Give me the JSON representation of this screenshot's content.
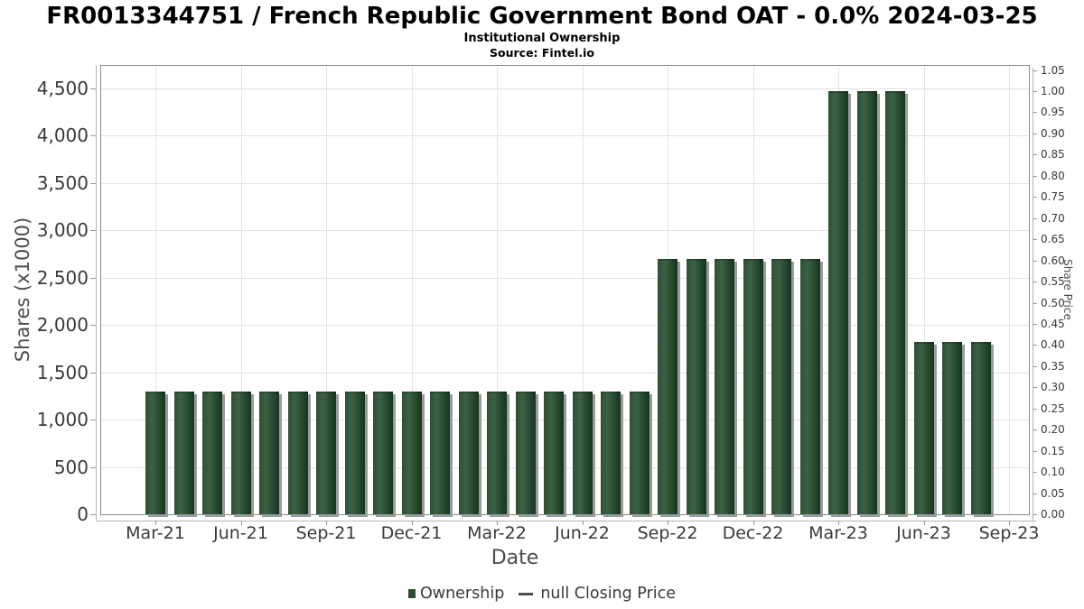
{
  "chart": {
    "title": "FR0013344751 / French Republic Government Bond OAT - 0.0% 2024-03-25",
    "subtitle": "Institutional Ownership",
    "source": "Source: Fintel.io",
    "legend": {
      "ownership_label": "Ownership",
      "closing_price_label": "null Closing Price"
    }
  },
  "chart_data": {
    "type": "bar",
    "title": "FR0013344751 / French Republic Government Bond OAT - 0.0% 2024-03-25",
    "subtitle": "Institutional Ownership",
    "source": "Source: Fintel.io",
    "categories": [
      "Mar-21",
      "Apr-21",
      "May-21",
      "Jun-21",
      "Jul-21",
      "Aug-21",
      "Sep-21",
      "Oct-21",
      "Nov-21",
      "Dec-21",
      "Jan-22",
      "Feb-22",
      "Mar-22",
      "Apr-22",
      "May-22",
      "Jun-22",
      "Jul-22",
      "Aug-22",
      "Sep-22",
      "Oct-22",
      "Nov-22",
      "Dec-22",
      "Jan-23",
      "Feb-23",
      "Mar-23",
      "Apr-23",
      "May-23",
      "Jun-23",
      "Jul-23",
      "Aug-23"
    ],
    "series": [
      {
        "name": "Ownership",
        "values": [
          1300,
          1300,
          1300,
          1300,
          1300,
          1300,
          1300,
          1300,
          1300,
          1300,
          1300,
          1300,
          1300,
          1300,
          1300,
          1300,
          1300,
          1300,
          2700,
          2700,
          2700,
          2700,
          2700,
          2700,
          4470,
          4470,
          4470,
          1820,
          1820,
          1820
        ]
      },
      {
        "name": "null Closing Price",
        "values": []
      }
    ],
    "x_axis": {
      "title": "Date",
      "tick_labels": [
        "Mar-21",
        "Jun-21",
        "Sep-21",
        "Dec-21",
        "Mar-22",
        "Jun-22",
        "Sep-22",
        "Dec-22",
        "Mar-23",
        "Jun-23",
        "Sep-23"
      ]
    },
    "left_axis": {
      "title": "Shares (x1000)",
      "tick_labels": [
        "0",
        "500",
        "1,000",
        "1,500",
        "2,000",
        "2,500",
        "3,000",
        "3,500",
        "4,000",
        "4,500"
      ],
      "tick_values": [
        0,
        500,
        1000,
        1500,
        2000,
        2500,
        3000,
        3500,
        4000,
        4500
      ],
      "range": [
        0,
        4730
      ]
    },
    "right_axis": {
      "title": "Share Price",
      "tick_labels": [
        "0.00",
        "0.05",
        "0.10",
        "0.15",
        "0.20",
        "0.25",
        "0.30",
        "0.35",
        "0.40",
        "0.45",
        "0.50",
        "0.55",
        "0.60",
        "0.65",
        "0.70",
        "0.75",
        "0.80",
        "0.85",
        "0.90",
        "0.95",
        "1.00",
        "1.05"
      ],
      "range": [
        0,
        1.05
      ]
    },
    "grid": true,
    "legend_position": "bottom",
    "colors": {
      "bar_main": "#2d5135",
      "bar_gradient": [
        "#2d5135",
        "#3c6145",
        "#294b31",
        "#17331f"
      ],
      "bar_shadow": "#9b9b9b",
      "legend_swatch": "#2a4d32",
      "gridline": "#e2e2e2",
      "plot_border": "#8a8a8a",
      "title_color": "#000000",
      "tick_label_color": "#3a3a3a",
      "axis_title_color": "#4d4d4d"
    }
  }
}
